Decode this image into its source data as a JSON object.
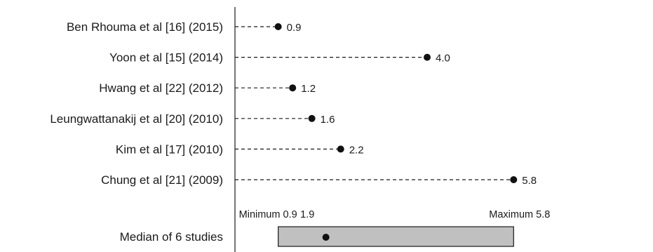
{
  "chart_data": {
    "type": "scatter",
    "title": "",
    "xlabel": "",
    "ylabel": "",
    "grid": false,
    "xlim": [
      0.0,
      6.0
    ],
    "series": [
      {
        "points": [
          {
            "study": "Ben Rhouma et al [16] (2015)",
            "value": 0.9,
            "value_label": "0.9"
          },
          {
            "study": "Yoon et al [15] (2014)",
            "value": 4.0,
            "value_label": "4.0"
          },
          {
            "study": "Hwang et al [22] (2012)",
            "value": 1.2,
            "value_label": "1.2"
          },
          {
            "study": "Leungwattanakij et al [20] (2010)",
            "value": 1.6,
            "value_label": "1.6"
          },
          {
            "study": "Kim et al [17] (2010)",
            "value": 2.2,
            "value_label": "2.2"
          },
          {
            "study": "Chung et al [21] (2009)",
            "value": 5.8,
            "value_label": "5.8"
          }
        ]
      }
    ],
    "summary": {
      "label": "Median of 6 studies",
      "median": 1.9,
      "median_label": "1.9",
      "min": 0.9,
      "min_label": "Minimum 0.9",
      "max": 5.8,
      "max_label": "Maximum 5.8",
      "box_color": "#c0c0c0"
    }
  }
}
